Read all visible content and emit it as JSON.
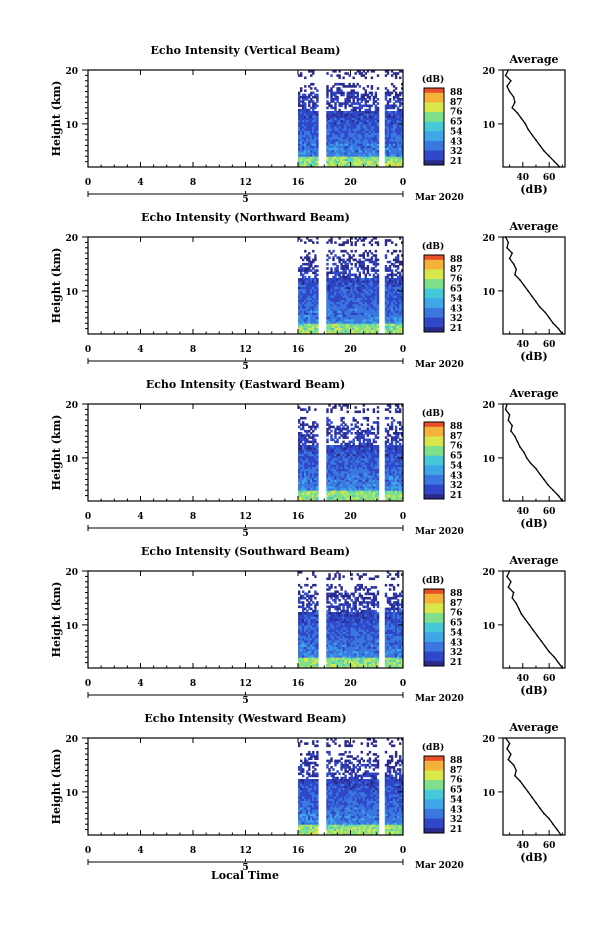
{
  "figure": {
    "xlabel": "Local Time",
    "date_label": "Mar 2020",
    "day_marker": "5",
    "ylabel": "Height (km)",
    "profile_title": "Average",
    "profile_xlabel": "(dB)",
    "colorbar_unit": "(dB)"
  },
  "colors": {
    "colormap": [
      "#2a2a8a",
      "#2f47c8",
      "#3a78e0",
      "#3fa6e8",
      "#45c8d8",
      "#7ee08a",
      "#d8e84a",
      "#f5b23a",
      "#e8502a"
    ]
  },
  "chart_data": [
    {
      "type": "heatmap",
      "title": "Echo Intensity (Vertical Beam)",
      "xlabel": "Local Time",
      "ylabel": "Height (km)",
      "xlim": [
        0,
        24
      ],
      "ylim": [
        2,
        20
      ],
      "x_ticks": [
        "0",
        "4",
        "8",
        "12",
        "16",
        "20",
        "0"
      ],
      "y_ticks": [
        "20",
        "10"
      ],
      "colorbar": {
        "unit": "(dB)",
        "ticks": [
          "88",
          "87",
          "76",
          "65",
          "54",
          "43",
          "32",
          "21"
        ]
      },
      "data_window_hours": [
        16,
        24
      ],
      "gaps_hours": [
        [
          17.6,
          18.2
        ],
        [
          22.2,
          22.6
        ]
      ],
      "profile": {
        "title": "Average",
        "xlabel": "(dB)",
        "x_ticks": [
          "40",
          "60"
        ],
        "y_ticks": [
          "20",
          "10"
        ],
        "xlim": [
          25,
          72
        ],
        "points": [
          [
            29,
            20
          ],
          [
            27,
            19
          ],
          [
            31,
            18
          ],
          [
            28,
            17
          ],
          [
            30,
            16
          ],
          [
            33,
            15
          ],
          [
            34,
            14
          ],
          [
            32,
            13
          ],
          [
            36,
            12
          ],
          [
            39,
            11
          ],
          [
            42,
            10
          ],
          [
            44,
            9
          ],
          [
            47,
            8
          ],
          [
            50,
            7
          ],
          [
            53,
            6
          ],
          [
            56,
            5
          ],
          [
            60,
            4
          ],
          [
            64,
            3
          ],
          [
            68,
            2
          ]
        ]
      }
    },
    {
      "type": "heatmap",
      "title": "Echo Intensity (Northward Beam)",
      "xlabel": "Local Time",
      "ylabel": "Height (km)",
      "xlim": [
        0,
        24
      ],
      "ylim": [
        2,
        20
      ],
      "x_ticks": [
        "0",
        "4",
        "8",
        "12",
        "16",
        "20",
        "0"
      ],
      "y_ticks": [
        "20",
        "10"
      ],
      "colorbar": {
        "unit": "(dB)",
        "ticks": [
          "88",
          "87",
          "76",
          "65",
          "54",
          "43",
          "32",
          "21"
        ]
      },
      "data_window_hours": [
        16,
        24
      ],
      "gaps_hours": [
        [
          17.6,
          18.2
        ],
        [
          22.2,
          22.6
        ]
      ],
      "profile": {
        "title": "Average",
        "xlabel": "(dB)",
        "x_ticks": [
          "40",
          "60"
        ],
        "y_ticks": [
          "20",
          "10"
        ],
        "xlim": [
          25,
          72
        ],
        "points": [
          [
            27,
            20
          ],
          [
            29,
            19
          ],
          [
            28,
            18
          ],
          [
            32,
            17
          ],
          [
            30,
            16
          ],
          [
            33,
            15
          ],
          [
            35,
            14
          ],
          [
            34,
            13
          ],
          [
            38,
            12
          ],
          [
            41,
            11
          ],
          [
            44,
            10
          ],
          [
            47,
            9
          ],
          [
            50,
            8
          ],
          [
            53,
            7
          ],
          [
            57,
            6
          ],
          [
            60,
            5
          ],
          [
            63,
            4
          ],
          [
            67,
            3
          ],
          [
            70,
            2
          ]
        ]
      }
    },
    {
      "type": "heatmap",
      "title": "Echo Intensity (Eastward Beam)",
      "xlabel": "Local Time",
      "ylabel": "Height (km)",
      "xlim": [
        0,
        24
      ],
      "ylim": [
        2,
        20
      ],
      "x_ticks": [
        "0",
        "4",
        "8",
        "12",
        "16",
        "20",
        "0"
      ],
      "y_ticks": [
        "20",
        "10"
      ],
      "colorbar": {
        "unit": "(dB)",
        "ticks": [
          "88",
          "87",
          "76",
          "65",
          "54",
          "43",
          "32",
          "21"
        ]
      },
      "data_window_hours": [
        16,
        24
      ],
      "gaps_hours": [
        [
          17.6,
          18.2
        ],
        [
          22.2,
          22.6
        ]
      ],
      "profile": {
        "title": "Average",
        "xlabel": "(dB)",
        "x_ticks": [
          "40",
          "60"
        ],
        "y_ticks": [
          "20",
          "10"
        ],
        "xlim": [
          25,
          72
        ],
        "points": [
          [
            28,
            20
          ],
          [
            27,
            19
          ],
          [
            30,
            18
          ],
          [
            29,
            17
          ],
          [
            32,
            16
          ],
          [
            31,
            15
          ],
          [
            34,
            14
          ],
          [
            36,
            13
          ],
          [
            38,
            12
          ],
          [
            41,
            11
          ],
          [
            43,
            10
          ],
          [
            46,
            9
          ],
          [
            50,
            8
          ],
          [
            53,
            7
          ],
          [
            56,
            6
          ],
          [
            59,
            5
          ],
          [
            63,
            4
          ],
          [
            67,
            3
          ],
          [
            70,
            2
          ]
        ]
      }
    },
    {
      "type": "heatmap",
      "title": "Echo Intensity (Southward Beam)",
      "xlabel": "Local Time",
      "ylabel": "Height (km)",
      "xlim": [
        0,
        24
      ],
      "ylim": [
        2,
        20
      ],
      "x_ticks": [
        "0",
        "4",
        "8",
        "12",
        "16",
        "20",
        "0"
      ],
      "y_ticks": [
        "20",
        "10"
      ],
      "colorbar": {
        "unit": "(dB)",
        "ticks": [
          "88",
          "87",
          "76",
          "65",
          "54",
          "43",
          "32",
          "21"
        ]
      },
      "data_window_hours": [
        16,
        24
      ],
      "gaps_hours": [
        [
          17.6,
          18.2
        ],
        [
          22.2,
          22.6
        ]
      ],
      "profile": {
        "title": "Average",
        "xlabel": "(dB)",
        "x_ticks": [
          "40",
          "60"
        ],
        "y_ticks": [
          "20",
          "10"
        ],
        "xlim": [
          25,
          72
        ],
        "points": [
          [
            30,
            20
          ],
          [
            28,
            19
          ],
          [
            31,
            18
          ],
          [
            29,
            17
          ],
          [
            33,
            16
          ],
          [
            32,
            15
          ],
          [
            35,
            14
          ],
          [
            37,
            13
          ],
          [
            39,
            12
          ],
          [
            42,
            11
          ],
          [
            45,
            10
          ],
          [
            48,
            9
          ],
          [
            51,
            8
          ],
          [
            54,
            7
          ],
          [
            57,
            6
          ],
          [
            60,
            5
          ],
          [
            64,
            4
          ],
          [
            67,
            3
          ],
          [
            70,
            2
          ]
        ]
      }
    },
    {
      "type": "heatmap",
      "title": "Echo Intensity (Westward Beam)",
      "xlabel": "Local Time",
      "ylabel": "Height (km)",
      "xlim": [
        0,
        24
      ],
      "ylim": [
        2,
        20
      ],
      "x_ticks": [
        "0",
        "4",
        "8",
        "12",
        "16",
        "20",
        "0"
      ],
      "y_ticks": [
        "20",
        "10"
      ],
      "colorbar": {
        "unit": "(dB)",
        "ticks": [
          "88",
          "87",
          "76",
          "65",
          "54",
          "43",
          "32",
          "21"
        ]
      },
      "data_window_hours": [
        16,
        24
      ],
      "gaps_hours": [
        [
          17.6,
          18.2
        ],
        [
          22.2,
          22.6
        ]
      ],
      "profile": {
        "title": "Average",
        "xlabel": "(dB)",
        "x_ticks": [
          "40",
          "60"
        ],
        "y_ticks": [
          "20",
          "10"
        ],
        "xlim": [
          25,
          72
        ],
        "points": [
          [
            27,
            20
          ],
          [
            30,
            19
          ],
          [
            28,
            18
          ],
          [
            31,
            17
          ],
          [
            29,
            16
          ],
          [
            33,
            15
          ],
          [
            35,
            14
          ],
          [
            34,
            13
          ],
          [
            38,
            12
          ],
          [
            41,
            11
          ],
          [
            44,
            10
          ],
          [
            47,
            9
          ],
          [
            50,
            8
          ],
          [
            53,
            7
          ],
          [
            56,
            6
          ],
          [
            60,
            5
          ],
          [
            63,
            4
          ],
          [
            66,
            3
          ],
          [
            69,
            2
          ]
        ]
      }
    }
  ]
}
